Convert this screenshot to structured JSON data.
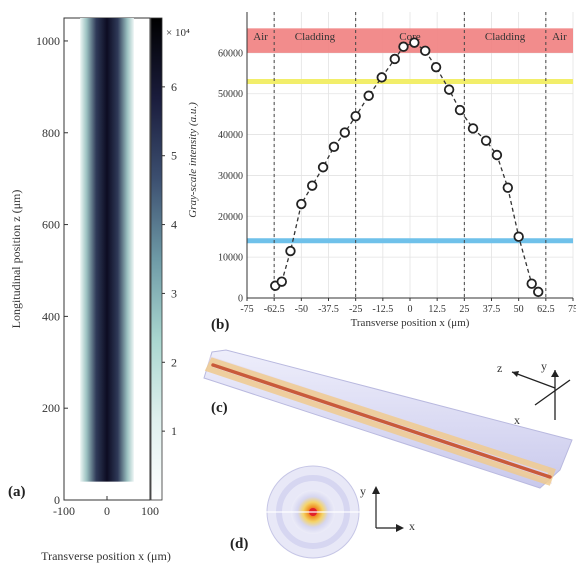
{
  "colors": {
    "red_band": "#f17f7f",
    "yellow_line": "#f2ee6a",
    "blue_line": "#6fc1ea",
    "fiber_core": "#c95a3a",
    "fiber_cladding": "#f0d6a8",
    "fiber_body": "#d9d9f3",
    "grid": "#e3e3e3",
    "marker": "#222222"
  },
  "chart_data": [
    {
      "id": "a",
      "type": "heatmap",
      "panel_label": "(a)",
      "xlabel": "Transverse position x (μm)",
      "ylabel": "Longitudinal position z (μm)",
      "xlim": [
        -100,
        100
      ],
      "ylim": [
        0,
        1050
      ],
      "xticks": [
        -100,
        0,
        100
      ],
      "yticks": [
        0,
        200,
        400,
        600,
        800,
        1000
      ],
      "data_extent": {
        "x": [
          -62.5,
          62.5
        ],
        "z": [
          40,
          1050
        ]
      },
      "colorbar": {
        "ticks": [
          1,
          2,
          3,
          4,
          5,
          6
        ],
        "multiplier": "× 10⁴",
        "colors": [
          "#ffffff",
          "#dff0ee",
          "#a9d6cf",
          "#6e9aa6",
          "#3c4f70",
          "#1a1c3c",
          "#000000"
        ]
      }
    },
    {
      "id": "b",
      "type": "scatter",
      "panel_label": "(b)",
      "xlabel": "Transverse position x (μm)",
      "ylabel": "Gray-scale intensity (a.u.)",
      "xlim": [
        -75,
        75
      ],
      "ylim": [
        0,
        70000
      ],
      "xticks": [
        "-75",
        "-62.5",
        "-50",
        "-37.5",
        "-25",
        "-12.5",
        "0",
        "12.5",
        "25",
        "37.5",
        "50",
        "62.5",
        "75"
      ],
      "yticks": [
        "0",
        "10000",
        "20000",
        "30000",
        "40000",
        "50000",
        "60000"
      ],
      "grid": true,
      "regions": [
        {
          "label": "Air",
          "from": -75,
          "to": -62.5
        },
        {
          "label": "Cladding",
          "from": -62.5,
          "to": -25
        },
        {
          "label": "Core",
          "from": -25,
          "to": 25
        },
        {
          "label": "Cladding",
          "from": 25,
          "to": 62.5
        },
        {
          "label": "Air",
          "from": 62.5,
          "to": 75
        }
      ],
      "region_boundaries": [
        -62.5,
        -25,
        25,
        62.5
      ],
      "bands": [
        {
          "color": "red",
          "from": 60000,
          "to": 66000
        },
        {
          "color": "yellow",
          "at": 53000
        },
        {
          "color": "blue",
          "at": 14000
        }
      ],
      "x": [
        -62,
        -59,
        -55,
        -50,
        -45,
        -40,
        -35,
        -30,
        -25,
        -19,
        -13,
        -7,
        -3,
        2,
        7,
        12,
        18,
        23,
        29,
        35,
        40,
        45,
        50,
        56,
        59
      ],
      "y": [
        3000,
        4000,
        11500,
        23000,
        27500,
        32000,
        37000,
        40500,
        44500,
        49500,
        54000,
        58500,
        61500,
        62500,
        60500,
        56500,
        51000,
        46000,
        41500,
        38500,
        35000,
        27000,
        15000,
        3500,
        1500
      ]
    }
  ],
  "panel_c": {
    "label": "(c)",
    "axes": [
      "z",
      "y",
      "x"
    ]
  },
  "panel_d": {
    "label": "(d)",
    "axes": [
      "y",
      "x"
    ]
  }
}
